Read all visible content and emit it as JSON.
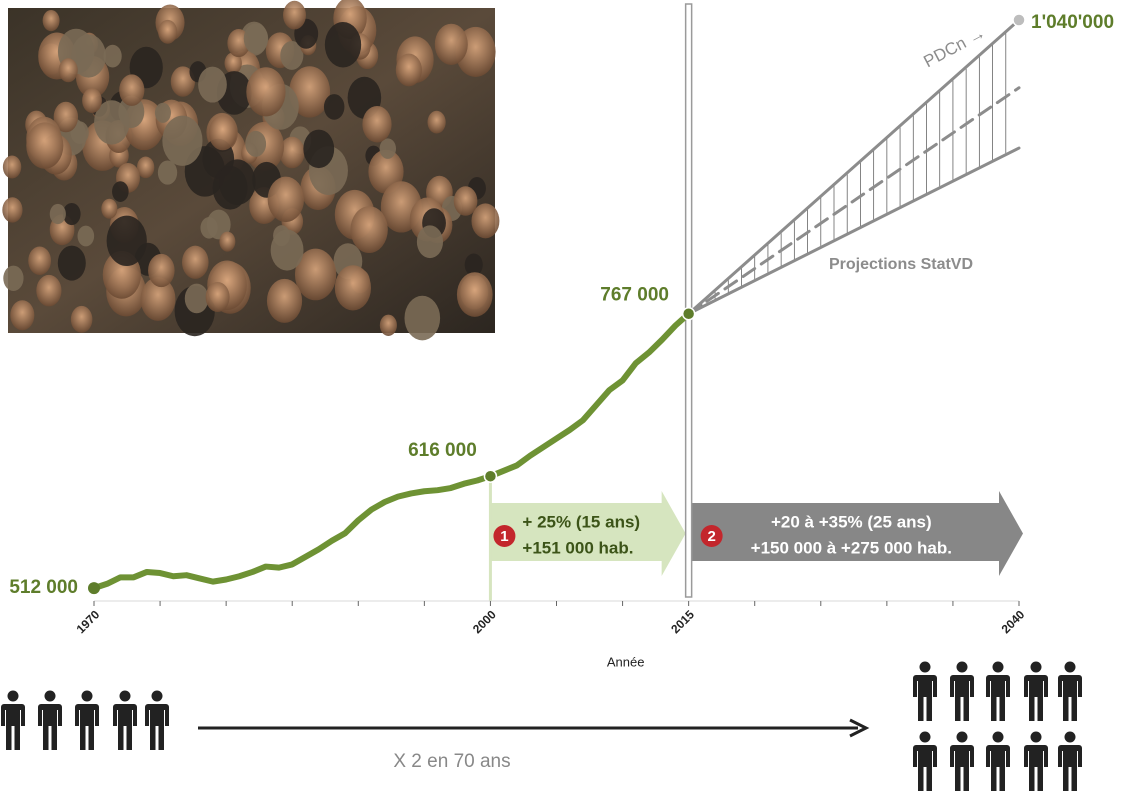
{
  "chart_data": {
    "type": "line",
    "xlabel": "Année",
    "xlim": [
      1970,
      2040
    ],
    "ylim": [
      500000,
      1040000
    ],
    "xticks": [
      1970,
      2000,
      2015,
      2040
    ],
    "minor_xticks": [
      1975,
      1980,
      1985,
      1990,
      1995,
      2005,
      2010,
      2020,
      2025,
      2030,
      2035
    ],
    "vline": 2015,
    "series": [
      {
        "color": "#6e9234",
        "style": "solid",
        "x": [
          1970,
          1971,
          1972,
          1973,
          1974,
          1975,
          1976,
          1977,
          1978,
          1979,
          1980,
          1981,
          1982,
          1983,
          1984,
          1985,
          1986,
          1987,
          1988,
          1989,
          1990,
          1991,
          1992,
          1993,
          1994,
          1995,
          1996,
          1997,
          1998,
          1999,
          2000,
          2001,
          2002,
          2003,
          2004,
          2005,
          2006,
          2007,
          2008,
          2009,
          2010,
          2011,
          2012,
          2013,
          2014,
          2015
        ],
        "values": [
          512000,
          516000,
          522000,
          522000,
          527000,
          526000,
          523000,
          524000,
          521000,
          518000,
          520000,
          523000,
          527000,
          532000,
          531000,
          534000,
          541000,
          548000,
          556000,
          563000,
          575000,
          585000,
          592000,
          597000,
          600000,
          602000,
          603000,
          605000,
          609000,
          612000,
          616000,
          621000,
          626000,
          635000,
          643000,
          651000,
          659000,
          668000,
          682000,
          696000,
          705000,
          721000,
          731000,
          743000,
          756000,
          767000
        ]
      },
      {
        "color": "#8c8c8c",
        "style": "solid",
        "x": [
          2015,
          2040
        ],
        "values": [
          767000,
          921000
        ]
      },
      {
        "color": "#8c8c8c",
        "style": "dashed",
        "x": [
          2015,
          2040
        ],
        "values": [
          767000,
          977000
        ]
      },
      {
        "color": "#8c8c8c",
        "style": "solid",
        "x": [
          2015,
          2040
        ],
        "values": [
          767000,
          1040000
        ]
      }
    ],
    "point_labels": [
      {
        "x": 1970,
        "value": 512000,
        "label": "512 000",
        "color": "#5e7d2b"
      },
      {
        "x": 2000,
        "value": 616000,
        "label": "616 000",
        "color": "#5e7d2b"
      },
      {
        "x": 2015,
        "value": 767000,
        "label": "767 000",
        "color": "#5e7d2b"
      },
      {
        "x": 2040,
        "value": 1040000,
        "label": "1'040'000",
        "color": "#5e7d2b"
      }
    ],
    "annotations": [
      "PDCn →",
      "Projections StatVD"
    ],
    "periods": [
      {
        "from": 2000,
        "to": 2015,
        "number": "1",
        "lines": [
          "+ 25% (15 ans)",
          "+151 000 hab."
        ],
        "color": "#d6e5bf",
        "text_color": "#3c5418"
      },
      {
        "from": 2015,
        "to": 2040,
        "number": "2",
        "lines": [
          "+20 à +35% (25 ans)",
          "+150 000 à +275 000 hab."
        ],
        "color": "#878787",
        "text_color": "#ffffff"
      }
    ]
  },
  "footer": {
    "text": "X 2 en 70 ans"
  }
}
